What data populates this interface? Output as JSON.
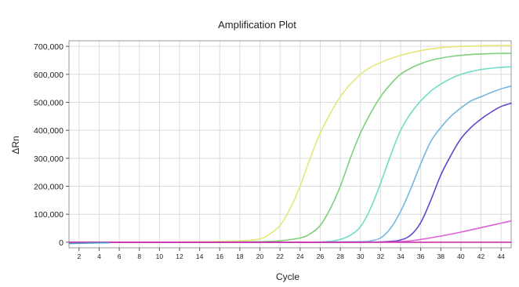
{
  "chart_data": {
    "type": "line",
    "title": "Amplification Plot",
    "xlabel": "Cycle",
    "ylabel": "ΔRn",
    "xlim": [
      1,
      45
    ],
    "ylim": [
      -20000,
      720000
    ],
    "grid": true,
    "x_ticks": [
      2,
      4,
      6,
      8,
      10,
      12,
      14,
      16,
      18,
      20,
      22,
      24,
      26,
      28,
      30,
      32,
      34,
      36,
      38,
      40,
      42,
      44
    ],
    "y_ticks": [
      {
        "value": 0,
        "label": "0"
      },
      {
        "value": 100000,
        "label": "100,000"
      },
      {
        "value": 200000,
        "label": "200,000"
      },
      {
        "value": 300000,
        "label": "300,000"
      },
      {
        "value": 400000,
        "label": "400,000"
      },
      {
        "value": 500000,
        "label": "500,000"
      },
      {
        "value": 600000,
        "label": "600,000"
      },
      {
        "value": 700000,
        "label": "700,000"
      }
    ],
    "series": [
      {
        "color": "#e6e67a",
        "x": [
          1,
          5,
          10,
          15,
          18,
          20,
          21,
          22,
          23,
          24,
          25,
          26,
          27,
          28,
          29,
          30,
          31,
          32,
          33,
          34,
          35,
          36,
          37,
          38,
          39,
          40,
          41,
          42,
          43,
          44,
          45
        ],
        "y": [
          0,
          0,
          0,
          2000,
          5000,
          12000,
          30000,
          60000,
          120000,
          200000,
          300000,
          390000,
          460000,
          520000,
          565000,
          600000,
          625000,
          642000,
          656000,
          668000,
          677000,
          685000,
          691000,
          695000,
          698000,
          700000,
          701000,
          702000,
          703000,
          703000,
          703000
        ]
      },
      {
        "color": "#7ed07a",
        "x": [
          1,
          5,
          10,
          15,
          20,
          22,
          24,
          25,
          26,
          27,
          28,
          29,
          30,
          31,
          32,
          33,
          34,
          35,
          36,
          37,
          38,
          39,
          40,
          41,
          42,
          43,
          44,
          45
        ],
        "y": [
          0,
          0,
          0,
          0,
          2000,
          5000,
          15000,
          30000,
          60000,
          120000,
          200000,
          300000,
          390000,
          460000,
          520000,
          565000,
          600000,
          622000,
          638000,
          650000,
          658000,
          664000,
          668000,
          671000,
          673000,
          674000,
          675000,
          675000
        ]
      },
      {
        "color": "#6fdcc8",
        "x": [
          1,
          10,
          20,
          25,
          27,
          28,
          29,
          30,
          31,
          32,
          33,
          34,
          35,
          36,
          37,
          38,
          39,
          40,
          41,
          42,
          43,
          44,
          45
        ],
        "y": [
          0,
          0,
          0,
          0,
          3000,
          10000,
          25000,
          55000,
          120000,
          210000,
          310000,
          400000,
          460000,
          505000,
          540000,
          565000,
          585000,
          600000,
          610000,
          617000,
          622000,
          625000,
          627000
        ]
      },
      {
        "color": "#74b6e0",
        "x": [
          1,
          10,
          20,
          25,
          30,
          31,
          32,
          33,
          34,
          35,
          36,
          37,
          38,
          39,
          40,
          41,
          42,
          43,
          44,
          45
        ],
        "y": [
          0,
          0,
          0,
          0,
          2000,
          5000,
          15000,
          50000,
          110000,
          190000,
          280000,
          360000,
          410000,
          450000,
          480000,
          505000,
          520000,
          535000,
          548000,
          558000
        ]
      },
      {
        "color": "#6644cc",
        "x": [
          1,
          10,
          20,
          30,
          33,
          34,
          35,
          36,
          37,
          38,
          39,
          40,
          41,
          42,
          43,
          44,
          45
        ],
        "y": [
          0,
          0,
          0,
          0,
          3000,
          8000,
          25000,
          70000,
          150000,
          240000,
          310000,
          370000,
          410000,
          440000,
          465000,
          485000,
          497000
        ]
      },
      {
        "color": "#e060d8",
        "x": [
          1,
          10,
          20,
          30,
          34,
          36,
          38,
          40,
          42,
          44,
          45
        ],
        "y": [
          0,
          0,
          0,
          0,
          2000,
          10000,
          22000,
          36000,
          52000,
          68000,
          76000
        ]
      },
      {
        "color": "#cc33aa",
        "x": [
          1,
          45
        ],
        "y": [
          0,
          0
        ]
      },
      {
        "color": "#4aa0c8",
        "x": [
          1,
          3,
          5
        ],
        "y": [
          -5000,
          -3000,
          -2000
        ]
      }
    ]
  }
}
